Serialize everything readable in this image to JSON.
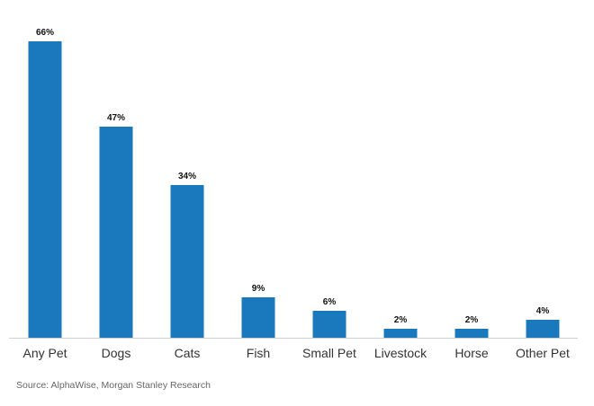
{
  "chart_data": {
    "type": "bar",
    "title": "",
    "xlabel": "",
    "ylabel": "",
    "categories": [
      "Any Pet",
      "Dogs",
      "Cats",
      "Fish",
      "Small Pet",
      "Livestock",
      "Horse",
      "Other Pet"
    ],
    "values": [
      66,
      47,
      34,
      9,
      6,
      2,
      2,
      4
    ],
    "value_labels": [
      "66%",
      "47%",
      "34%",
      "9%",
      "6%",
      "2%",
      "2%",
      "4%"
    ],
    "ylim": [
      0,
      70
    ],
    "grid": false,
    "legend": "none",
    "bar_color": "#1a78bd",
    "axis_color": "#cfcfcf",
    "source": "Source: AlphaWise, Morgan Stanley Research"
  }
}
